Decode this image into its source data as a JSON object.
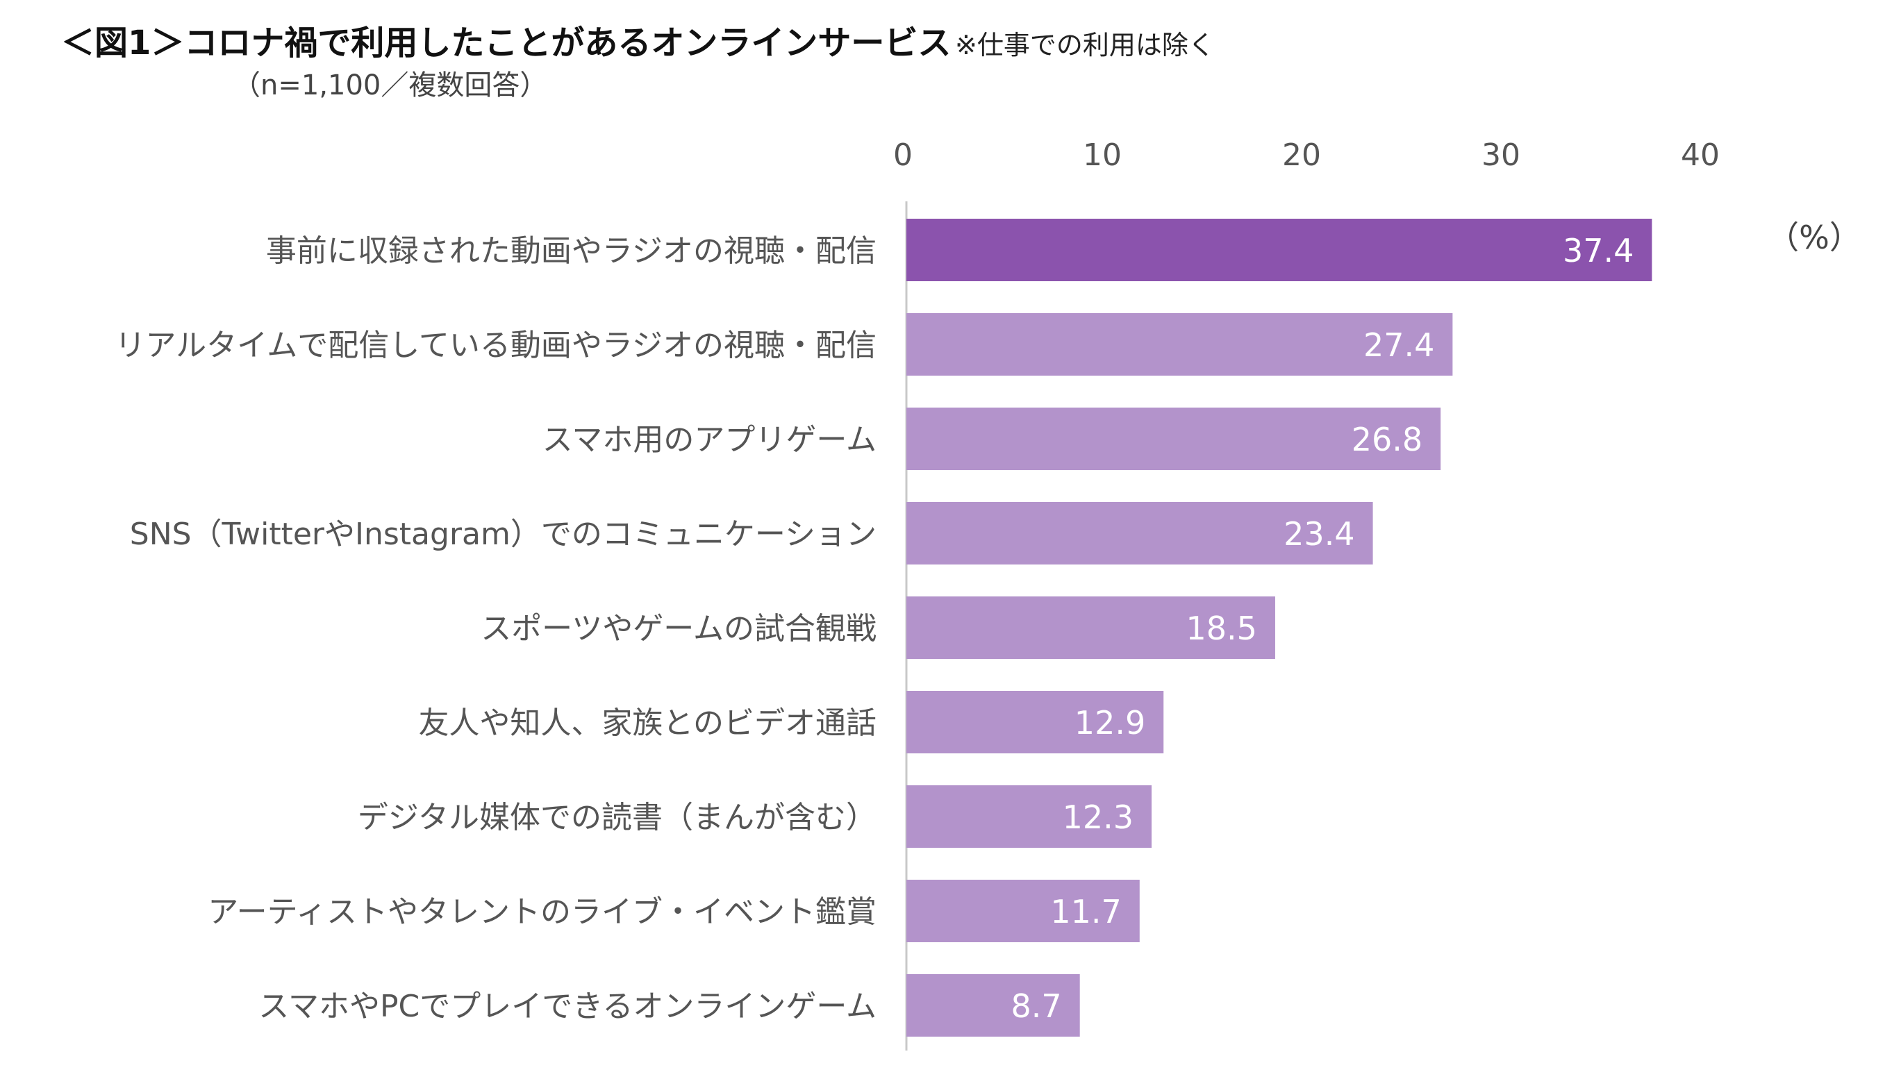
{
  "header": {
    "title": "＜図1＞コロナ禍で利用したことがあるオンラインサービス",
    "note": "※仕事での利用は除く",
    "subtitle": "（n=1,100／複数回答）"
  },
  "chart_data": {
    "type": "bar",
    "orientation": "horizontal",
    "unit_label": "（%）",
    "xlim": [
      0,
      40
    ],
    "x_ticks": [
      0,
      10,
      20,
      30,
      40
    ],
    "axis_position": "top",
    "grid": false,
    "categories": [
      "事前に収録された動画やラジオの視聴・配信",
      "リアルタイムで配信している動画やラジオの視聴・配信",
      "スマホ用のアプリゲーム",
      "SNS（TwitterやInstagram）でのコミュニケーション",
      "スポーツやゲームの試合観戦",
      "友人や知人、家族とのビデオ通話",
      "デジタル媒体での読書（まんが含む）",
      "アーティストやタレントのライブ・イベント鑑賞",
      "スマホやPCでプレイできるオンラインゲーム"
    ],
    "values": [
      37.4,
      27.4,
      26.8,
      23.4,
      18.5,
      12.9,
      12.3,
      11.7,
      8.7
    ],
    "value_labels": [
      "37.4",
      "27.4",
      "26.8",
      "23.4",
      "18.5",
      "12.9",
      "12.3",
      "11.7",
      "8.7"
    ],
    "colors": {
      "highlight": "#8b53ad",
      "bar": "#b393cb",
      "axis": "#c8c8c8"
    }
  }
}
